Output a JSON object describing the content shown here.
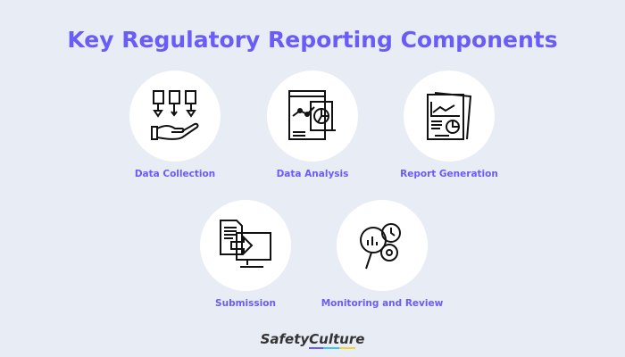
{
  "title": "Key Regulatory Reporting Components",
  "components": [
    {
      "label": "Data Collection",
      "icon": "hand-documents-icon"
    },
    {
      "label": "Data Analysis",
      "icon": "analysis-charts-icon"
    },
    {
      "label": "Report Generation",
      "icon": "report-document-icon"
    },
    {
      "label": "Submission",
      "icon": "document-to-monitor-icon"
    },
    {
      "label": "Monitoring and Review",
      "icon": "magnifier-clock-icon"
    }
  ],
  "brand": {
    "logo_text": "SafetyCulture",
    "colors": {
      "accent": "#6a5cf6",
      "background": "#e8ecf5"
    }
  }
}
